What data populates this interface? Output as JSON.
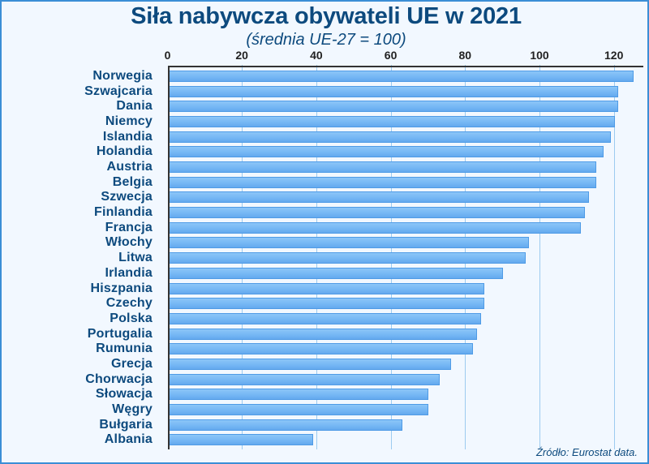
{
  "header": {
    "title": "Siła nabywcza obywateli UE w 2021",
    "subtitle": "(średnia UE-27 = 100)"
  },
  "axis": {
    "ticks": [
      "0",
      "20",
      "40",
      "60",
      "80",
      "100",
      "120"
    ]
  },
  "footer": {
    "source": "Źródło: Eurostat data."
  },
  "colors": {
    "title": "#0d4a7e",
    "bar_fill": "#74b6f4",
    "bar_border": "#4f9be6",
    "gridline": "#9ccbf0",
    "frame_border": "#3b8ed6",
    "background": "#f2f8ff"
  },
  "chart_data": {
    "type": "bar",
    "orientation": "horizontal",
    "title": "Siła nabywcza obywateli UE w 2021",
    "subtitle": "(średnia UE-27 = 100)",
    "xlabel": "",
    "ylabel": "",
    "xlim": [
      0,
      127
    ],
    "xticks": [
      0,
      20,
      40,
      60,
      80,
      100,
      120
    ],
    "grid": "vertical",
    "axis_position": "top",
    "legend": null,
    "annotations": [
      "Źródło: Eurostat data."
    ],
    "highlighted_categories": [
      "Holandia",
      "Polska"
    ],
    "categories": [
      "Norwegia",
      "Szwajcaria",
      "Dania",
      "Niemcy",
      "Islandia",
      "Holandia",
      "Austria",
      "Belgia",
      "Szwecja",
      "Finlandia",
      "Francja",
      "Włochy",
      "Litwa",
      "Irlandia",
      "Hiszpania",
      "Czechy",
      "Polska",
      "Portugalia",
      "Rumunia",
      "Grecja",
      "Chorwacja",
      "Słowacja",
      "Węgry",
      "Bułgaria",
      "Albania"
    ],
    "values": [
      125,
      121,
      121,
      120,
      119,
      117,
      115,
      115,
      113,
      112,
      111,
      97,
      96,
      90,
      85,
      85,
      84,
      83,
      82,
      76,
      73,
      70,
      70,
      63,
      39
    ]
  }
}
